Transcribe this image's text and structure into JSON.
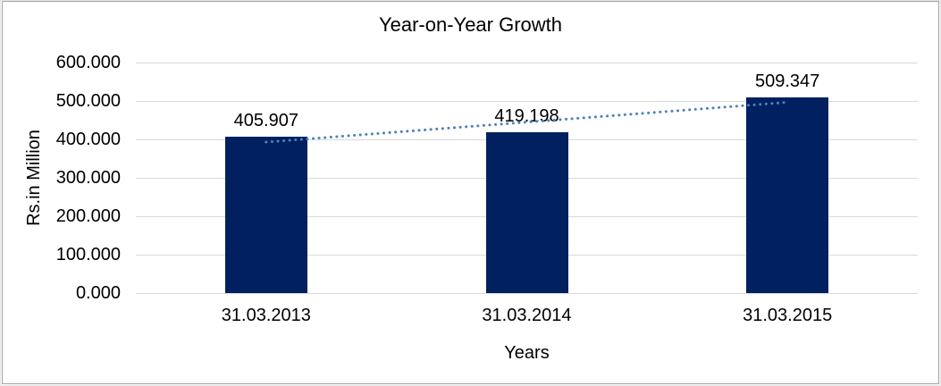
{
  "chart_data": {
    "type": "bar",
    "title": "Year-on-Year Growth",
    "xlabel": "Years",
    "ylabel": "Rs.in Million",
    "categories": [
      "31.03.2013",
      "31.03.2014",
      "31.03.2015"
    ],
    "values": [
      405.907,
      419.198,
      509.347
    ],
    "data_labels": [
      "405.907",
      "419.198",
      "509.347"
    ],
    "ylim": [
      0,
      600
    ],
    "ytick_step": 100,
    "ytick_labels": [
      "0.000",
      "100.000",
      "200.000",
      "300.000",
      "400.000",
      "500.000",
      "600.000"
    ],
    "grid": true,
    "legend": "none",
    "bar_color": "#002060",
    "gridline_color": "#d9d9d9",
    "trendline": {
      "type": "linear",
      "style": "dotted",
      "color": "#4f81bd"
    }
  }
}
